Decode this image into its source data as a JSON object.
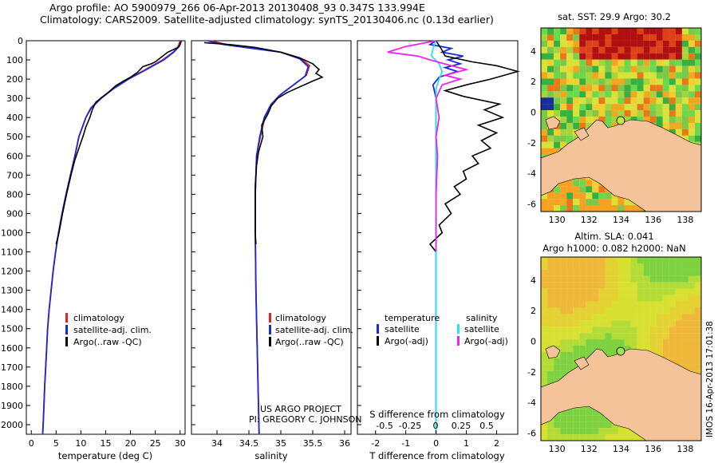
{
  "header": {
    "line1": "Argo profile: AO 5900979_266 06-Apr-2013 20130408_93 0.347S 133.994E",
    "line2": "Climatology: CARS2009. Satellite-adjusted climatology: synTS_20130406.nc (0.13d earlier)"
  },
  "colors": {
    "climatology": "#e8202a",
    "satellite": "#1a2bd6",
    "argo": "#000000",
    "sal_satellite": "#22e6f0",
    "sal_argo": "#ee22ee",
    "land": "#f5c39a"
  },
  "chart_data": [
    {
      "type": "line",
      "panel": "temperature",
      "xlabel": "temperature (deg C)",
      "ylabel": "",
      "xlim": [
        -1,
        31
      ],
      "ylim": [
        2050,
        0
      ],
      "xticks": [
        "0",
        "5",
        "10",
        "15",
        "20",
        "25",
        "30"
      ],
      "yticks": [
        "0",
        "100",
        "200",
        "300",
        "400",
        "500",
        "600",
        "700",
        "800",
        "900",
        "1000",
        "1100",
        "1200",
        "1300",
        "1400",
        "1500",
        "1600",
        "1700",
        "1800",
        "1900",
        "2000"
      ],
      "legend": [
        "climatology",
        "satellite-adj. clim.",
        "Argo(..raw -QC)"
      ],
      "series": [
        {
          "name": "climatology",
          "color_key": "climatology",
          "points": [
            [
              30.0,
              0
            ],
            [
              29.6,
              30
            ],
            [
              28.6,
              60
            ],
            [
              26.5,
              100
            ],
            [
              23.0,
              150
            ],
            [
              19.5,
              200
            ],
            [
              16.5,
              250
            ],
            [
              14.0,
              300
            ],
            [
              12.0,
              350
            ],
            [
              11.0,
              400
            ],
            [
              10.3,
              450
            ],
            [
              9.6,
              500
            ],
            [
              8.8,
              600
            ],
            [
              7.9,
              700
            ],
            [
              7.0,
              800
            ],
            [
              6.2,
              900
            ],
            [
              5.5,
              1000
            ],
            [
              4.9,
              1100
            ],
            [
              4.4,
              1200
            ],
            [
              4.0,
              1300
            ],
            [
              3.6,
              1400
            ],
            [
              3.3,
              1500
            ],
            [
              3.1,
              1600
            ],
            [
              2.9,
              1700
            ],
            [
              2.7,
              1800
            ],
            [
              2.55,
              1900
            ],
            [
              2.4,
              2000
            ],
            [
              2.3,
              2050
            ]
          ]
        },
        {
          "name": "satellite-adj. clim.",
          "color_key": "satellite",
          "points": [
            [
              30.3,
              0
            ],
            [
              29.8,
              30
            ],
            [
              28.7,
              60
            ],
            [
              26.7,
              100
            ],
            [
              23.2,
              150
            ],
            [
              19.6,
              200
            ],
            [
              16.6,
              250
            ],
            [
              14.1,
              300
            ],
            [
              12.1,
              350
            ],
            [
              11.0,
              400
            ],
            [
              10.3,
              450
            ],
            [
              9.6,
              500
            ],
            [
              8.8,
              600
            ],
            [
              7.9,
              700
            ],
            [
              7.0,
              800
            ],
            [
              6.2,
              900
            ],
            [
              5.5,
              1000
            ],
            [
              4.9,
              1100
            ],
            [
              4.4,
              1200
            ],
            [
              4.0,
              1300
            ],
            [
              3.6,
              1400
            ],
            [
              3.3,
              1500
            ],
            [
              3.1,
              1600
            ],
            [
              2.9,
              1700
            ],
            [
              2.7,
              1800
            ],
            [
              2.55,
              1900
            ],
            [
              2.4,
              2000
            ],
            [
              2.3,
              2050
            ]
          ]
        },
        {
          "name": "Argo(..raw -QC)",
          "color_key": "argo",
          "points": [
            [
              30.1,
              5
            ],
            [
              30.0,
              20
            ],
            [
              29.6,
              35
            ],
            [
              27.5,
              60
            ],
            [
              26.0,
              90
            ],
            [
              25.0,
              110
            ],
            [
              24.2,
              120
            ],
            [
              22.5,
              135
            ],
            [
              21.4,
              165
            ],
            [
              20.0,
              190
            ],
            [
              18.6,
              210
            ],
            [
              17.0,
              235
            ],
            [
              15.7,
              265
            ],
            [
              14.0,
              300
            ],
            [
              13.0,
              320
            ],
            [
              12.3,
              360
            ],
            [
              11.8,
              400
            ],
            [
              11.0,
              450
            ],
            [
              10.4,
              500
            ],
            [
              9.6,
              560
            ],
            [
              8.8,
              620
            ],
            [
              8.0,
              700
            ],
            [
              7.1,
              800
            ],
            [
              6.3,
              900
            ],
            [
              5.6,
              1000
            ],
            [
              5.0,
              1060
            ]
          ]
        }
      ]
    },
    {
      "type": "line",
      "panel": "salinity",
      "xlabel": "salinity",
      "xlim": [
        33.6,
        36.1
      ],
      "ylim": [
        2050,
        0
      ],
      "xticks": [
        "34",
        "34.5",
        "35",
        "35.5",
        "36"
      ],
      "legend": [
        "climatology",
        "satellite-adj. clim.",
        "Argo(..raw -QC)"
      ],
      "annotation": [
        "US ARGO PROJECT",
        "PI: GREGORY C. JOHNSON"
      ],
      "series": [
        {
          "name": "climatology",
          "color_key": "climatology",
          "points": [
            [
              33.9,
              0
            ],
            [
              34.15,
              20
            ],
            [
              34.6,
              40
            ],
            [
              35.0,
              60
            ],
            [
              35.3,
              90
            ],
            [
              35.45,
              130
            ],
            [
              35.4,
              180
            ],
            [
              35.2,
              230
            ],
            [
              35.0,
              280
            ],
            [
              34.85,
              330
            ],
            [
              34.75,
              400
            ],
            [
              34.68,
              500
            ],
            [
              34.62,
              600
            ],
            [
              34.6,
              800
            ],
            [
              34.6,
              1000
            ],
            [
              34.61,
              1300
            ],
            [
              34.63,
              1600
            ],
            [
              34.65,
              1900
            ],
            [
              34.66,
              2050
            ]
          ]
        },
        {
          "name": "satellite-adj. clim.",
          "color_key": "satellite",
          "points": [
            [
              33.85,
              0
            ],
            [
              34.1,
              20
            ],
            [
              34.55,
              40
            ],
            [
              35.0,
              60
            ],
            [
              35.3,
              95
            ],
            [
              35.43,
              135
            ],
            [
              35.38,
              185
            ],
            [
              35.18,
              235
            ],
            [
              34.98,
              285
            ],
            [
              34.84,
              335
            ],
            [
              34.74,
              400
            ],
            [
              34.67,
              500
            ],
            [
              34.62,
              600
            ],
            [
              34.6,
              800
            ],
            [
              34.6,
              1000
            ],
            [
              34.61,
              1300
            ],
            [
              34.63,
              1600
            ],
            [
              34.65,
              1900
            ],
            [
              34.66,
              2050
            ]
          ]
        },
        {
          "name": "Argo(..raw -QC)",
          "color_key": "argo",
          "points": [
            [
              33.8,
              10
            ],
            [
              34.2,
              20
            ],
            [
              34.6,
              35
            ],
            [
              35.0,
              60
            ],
            [
              35.3,
              90
            ],
            [
              35.5,
              120
            ],
            [
              35.6,
              150
            ],
            [
              35.55,
              170
            ],
            [
              35.65,
              190
            ],
            [
              35.5,
              210
            ],
            [
              35.3,
              240
            ],
            [
              35.1,
              270
            ],
            [
              34.95,
              300
            ],
            [
              34.85,
              340
            ],
            [
              34.8,
              380
            ],
            [
              34.7,
              440
            ],
            [
              34.72,
              500
            ],
            [
              34.65,
              580
            ],
            [
              34.62,
              650
            ],
            [
              34.6,
              750
            ],
            [
              34.6,
              900
            ],
            [
              34.6,
              1000
            ],
            [
              34.61,
              1060
            ]
          ]
        }
      ]
    },
    {
      "type": "line",
      "panel": "difference",
      "xlabel": "T difference from climatology",
      "xlabel_top": "S difference from climatology",
      "xlim": [
        -2.6,
        2.7
      ],
      "ylim": [
        2050,
        0
      ],
      "xticks": [
        "-2",
        "-1",
        "0",
        "1",
        "2"
      ],
      "xticks_s": [
        "-0.5",
        "-0.25",
        "0",
        "0.25",
        "0.5"
      ],
      "legend_titles": [
        "temperature",
        "salinity"
      ],
      "legend": [
        "satellite",
        "Argo(-adj)",
        "satellite",
        "Argo(-adj)"
      ],
      "series": [
        {
          "name": "satellite",
          "group": "temperature",
          "color_key": "satellite",
          "points": [
            [
              0.0,
              0
            ],
            [
              -0.2,
              20
            ],
            [
              0.5,
              40
            ],
            [
              0.2,
              60
            ],
            [
              0.9,
              80
            ],
            [
              0.4,
              100
            ],
            [
              0.8,
              120
            ],
            [
              0.3,
              140
            ],
            [
              0.7,
              160
            ],
            [
              0.1,
              190
            ],
            [
              -0.1,
              230
            ],
            [
              0.0,
              300
            ],
            [
              0.0,
              500
            ],
            [
              0.0,
              1000
            ],
            [
              0.0,
              2050
            ]
          ]
        },
        {
          "name": "Argo(-adj)",
          "group": "temperature",
          "color_key": "argo",
          "points": [
            [
              0.0,
              0
            ],
            [
              0.2,
              50
            ],
            [
              0.3,
              80
            ],
            [
              1.2,
              110
            ],
            [
              2.0,
              130
            ],
            [
              2.7,
              160
            ],
            [
              1.8,
              200
            ],
            [
              1.0,
              230
            ],
            [
              0.3,
              260
            ],
            [
              0.9,
              290
            ],
            [
              2.1,
              330
            ],
            [
              1.6,
              360
            ],
            [
              2.2,
              400
            ],
            [
              1.4,
              440
            ],
            [
              2.0,
              480
            ],
            [
              1.5,
              520
            ],
            [
              1.8,
              560
            ],
            [
              1.2,
              600
            ],
            [
              1.4,
              640
            ],
            [
              0.9,
              680
            ],
            [
              1.0,
              720
            ],
            [
              0.6,
              760
            ],
            [
              0.8,
              800
            ],
            [
              0.3,
              850
            ],
            [
              0.5,
              900
            ],
            [
              0.1,
              960
            ],
            [
              0.2,
              1000
            ],
            [
              -0.2,
              1060
            ],
            [
              0.0,
              1100
            ]
          ]
        },
        {
          "name": "satellite",
          "group": "salinity",
          "color_key": "sal_satellite",
          "points": [
            [
              0.0,
              0
            ],
            [
              -0.1,
              40
            ],
            [
              -0.15,
              80
            ],
            [
              0.1,
              120
            ],
            [
              0.2,
              160
            ],
            [
              0.1,
              200
            ],
            [
              0.0,
              250
            ],
            [
              0.0,
              400
            ],
            [
              0.0,
              800
            ],
            [
              0.0,
              2050
            ]
          ]
        },
        {
          "name": "Argo(-adj)",
          "group": "salinity",
          "color_key": "sal_argo",
          "points": [
            [
              0.0,
              0
            ],
            [
              -1.0,
              30
            ],
            [
              -1.6,
              60
            ],
            [
              -0.6,
              80
            ],
            [
              -0.2,
              100
            ],
            [
              0.5,
              130
            ],
            [
              1.0,
              150
            ],
            [
              0.3,
              180
            ],
            [
              0.8,
              200
            ],
            [
              0.2,
              230
            ],
            [
              0.0,
              300
            ],
            [
              0.1,
              400
            ],
            [
              0.0,
              500
            ],
            [
              0.05,
              600
            ],
            [
              0.0,
              800
            ],
            [
              0.0,
              1100
            ]
          ]
        }
      ]
    },
    {
      "type": "heatmap",
      "panel": "sst_map",
      "title": "sat. SST: 29.9 Argo: 30.2",
      "xticks": [
        "130",
        "132",
        "134",
        "136",
        "138"
      ],
      "yticks": [
        "4",
        "2",
        "0",
        "-2",
        "-4",
        "-6"
      ],
      "xlim": [
        129,
        139
      ],
      "ylim": [
        -6.5,
        5.5
      ],
      "marker": {
        "lon": 133.994,
        "lat": -0.347
      }
    },
    {
      "type": "heatmap",
      "panel": "sla_map",
      "title": "Altim. SLA: 0.041",
      "subtitle": "Argo h1000: 0.082 h2000: NaN",
      "xticks": [
        "130",
        "132",
        "134",
        "136",
        "138"
      ],
      "yticks": [
        "4",
        "2",
        "0",
        "-2",
        "-4",
        "-6"
      ],
      "xlim": [
        129,
        139
      ],
      "ylim": [
        -6.5,
        5.5
      ],
      "marker": {
        "lon": 133.994,
        "lat": -0.347
      }
    }
  ],
  "stamp": "IMOS 16-Apr-2013 17:01:38"
}
